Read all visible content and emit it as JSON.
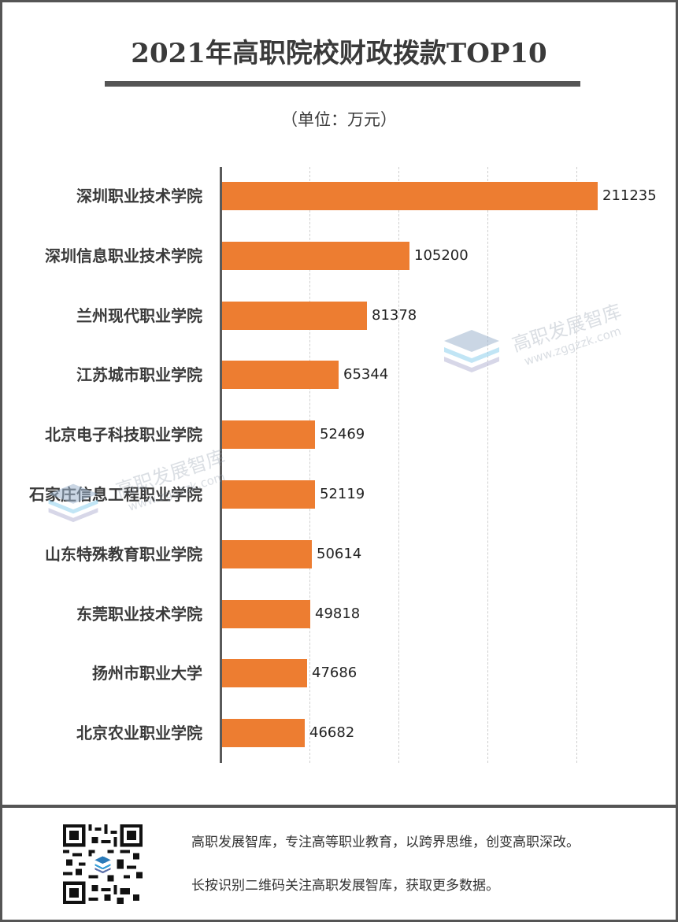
{
  "header": {
    "title": "2021年高职院校财政拨款TOP10",
    "unit": "（单位：万元）"
  },
  "chart_data": {
    "type": "bar",
    "orientation": "horizontal",
    "title": "2021年高职院校财政拨款TOP10",
    "subtitle": "（单位：万元）",
    "xlabel": "",
    "ylabel": "",
    "xlim": [
      0,
      250000
    ],
    "grid": true,
    "grid_step": 50000,
    "legend": "none",
    "bar_color": "#ed7d31",
    "categories": [
      "深圳职业技术学院",
      "深圳信息职业技术学院",
      "兰州现代职业学院",
      "江苏城市职业学院",
      "北京电子科技职业学院",
      "石家庄信息工程职业学院",
      "山东特殊教育职业学院",
      "东莞职业技术学院",
      "扬州市职业大学",
      "北京农业职业学院"
    ],
    "values": [
      211235,
      105200,
      81378,
      65344,
      52469,
      52119,
      50614,
      49818,
      47686,
      46682
    ],
    "value_labels": [
      "211235",
      "105200",
      "81378",
      "65344",
      "52469",
      "52119",
      "50614",
      "49818",
      "47686",
      "46682"
    ]
  },
  "watermark": {
    "name": "高职发展智库",
    "url": "www.zggzzk.com"
  },
  "footer": {
    "line1": "高职发展智库，专注高等职业教育，以跨界思维，创变高职深改。",
    "line2": "长按识别二维码关注高职发展智库，获取更多数据。",
    "qr_icon": "qr-code-icon"
  }
}
